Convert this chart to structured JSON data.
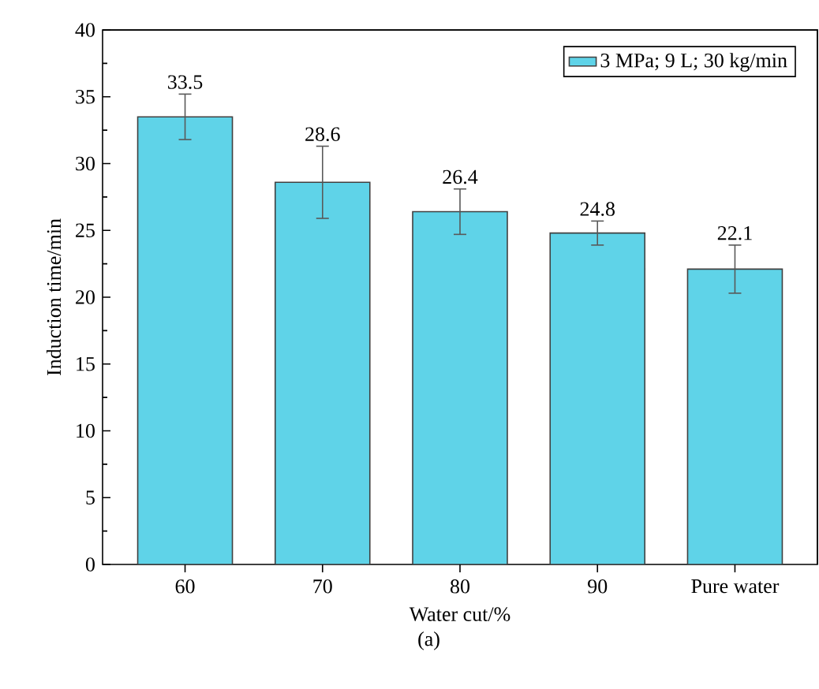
{
  "chart_data": {
    "type": "bar",
    "xlabel": "Water cut/%",
    "ylabel": "Induction time/min",
    "categories": [
      "60",
      "70",
      "80",
      "90",
      "Pure water"
    ],
    "series": [
      {
        "name": "3 MPa; 9 L; 30 kg/min",
        "color": "#5fd3e8",
        "values": [
          33.5,
          28.6,
          26.4,
          24.8,
          22.1
        ],
        "errors": [
          1.7,
          2.7,
          1.7,
          0.9,
          1.8
        ]
      }
    ],
    "data_labels": true,
    "ylim": [
      0,
      40
    ],
    "yticks": [
      0,
      5,
      10,
      15,
      20,
      25,
      30,
      35,
      40
    ],
    "grid": false,
    "legend": "top right",
    "annotations": [
      "(a)"
    ]
  }
}
